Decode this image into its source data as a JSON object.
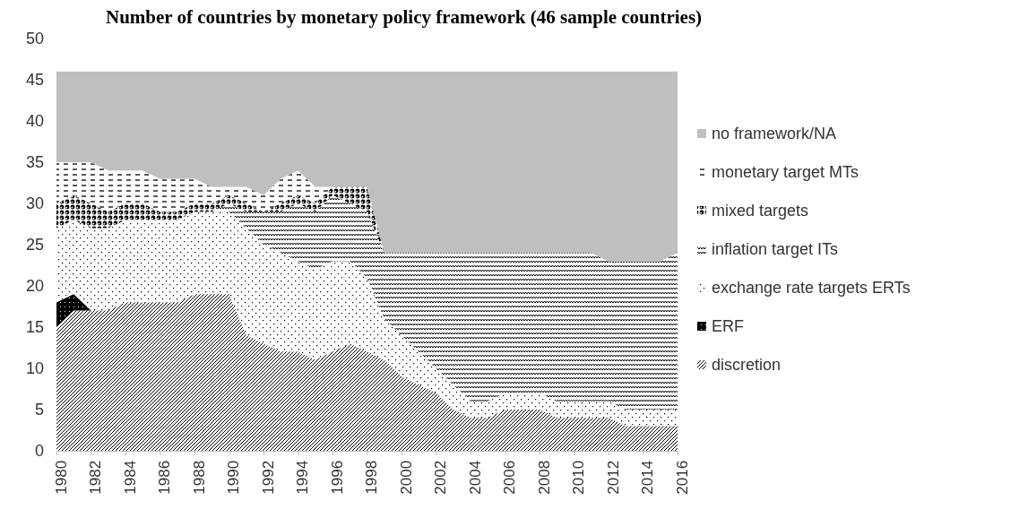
{
  "chart_data": {
    "type": "area",
    "stacked": true,
    "title": "Number of countries by monetary policy framework (46 sample countries)",
    "x": [
      1980,
      1981,
      1982,
      1983,
      1984,
      1985,
      1986,
      1987,
      1988,
      1989,
      1990,
      1991,
      1992,
      1993,
      1994,
      1995,
      1996,
      1997,
      1998,
      1999,
      2000,
      2001,
      2002,
      2003,
      2004,
      2005,
      2006,
      2007,
      2008,
      2009,
      2010,
      2011,
      2012,
      2013,
      2014,
      2015,
      2016
    ],
    "xlim": [
      1980,
      2016
    ],
    "xticks": [
      1980,
      1982,
      1984,
      1986,
      1988,
      1990,
      1992,
      1994,
      1996,
      1998,
      2000,
      2002,
      2004,
      2006,
      2008,
      2010,
      2012,
      2014,
      2016
    ],
    "ylim": [
      0,
      50
    ],
    "yticks": [
      0,
      5,
      10,
      15,
      20,
      25,
      30,
      35,
      40,
      45,
      50
    ],
    "grid": false,
    "legend": "right",
    "series": [
      {
        "name": "discretion",
        "color": "#000000",
        "values": [
          15,
          17,
          17,
          17,
          18,
          18,
          18,
          18,
          19,
          19,
          19,
          14,
          13,
          12,
          12,
          11,
          12,
          13,
          12,
          11,
          9,
          8,
          7,
          5,
          4,
          4,
          5,
          5,
          5,
          4,
          4,
          4,
          4,
          3,
          3,
          3,
          3
        ]
      },
      {
        "name": "ERF",
        "color": "#000000",
        "values": [
          3,
          2,
          0,
          0,
          0,
          0,
          0,
          0,
          0,
          0,
          0,
          0,
          0,
          0,
          0,
          0,
          0,
          0,
          0,
          0,
          0,
          0,
          0,
          0,
          0,
          0,
          0,
          0,
          0,
          0,
          0,
          0,
          0,
          0,
          0,
          0,
          0
        ]
      },
      {
        "name": "exchange rate targets ERTs",
        "color": "#000000",
        "values": [
          9,
          9,
          10,
          10,
          10,
          10,
          10,
          10,
          10,
          10,
          10,
          13,
          12,
          12,
          11,
          11,
          11,
          10,
          9,
          5,
          5,
          4,
          3,
          3,
          2,
          2,
          2,
          2,
          2,
          2,
          2,
          2,
          2,
          2,
          2,
          2,
          2
        ]
      },
      {
        "name": "inflation target ITs",
        "color": "#000000",
        "values": [
          0,
          0,
          0,
          0,
          0,
          0,
          0,
          0,
          0,
          0,
          1,
          2,
          4,
          5,
          7,
          7,
          8,
          7,
          8,
          8,
          10,
          12,
          14,
          16,
          18,
          18,
          17,
          17,
          17,
          18,
          18,
          18,
          17,
          18,
          18,
          18,
          19
        ]
      },
      {
        "name": "mixed targets",
        "color": "#000000",
        "values": [
          3,
          3,
          3,
          2,
          2,
          2,
          1,
          1,
          1,
          1,
          1,
          1,
          0,
          1,
          1,
          1,
          1,
          2,
          3,
          0,
          0,
          0,
          0,
          0,
          0,
          0,
          0,
          0,
          0,
          0,
          0,
          0,
          0,
          0,
          0,
          0,
          0
        ]
      },
      {
        "name": "monetary target MTs",
        "color": "#000000",
        "values": [
          5,
          4,
          5,
          5,
          4,
          4,
          4,
          4,
          3,
          2,
          1,
          2,
          2,
          3,
          3,
          2,
          0,
          0,
          0,
          0,
          0,
          0,
          0,
          0,
          0,
          0,
          0,
          0,
          0,
          0,
          0,
          0,
          0,
          0,
          0,
          0,
          0
        ]
      },
      {
        "name": "no framework/NA",
        "color": "#bfbfbf",
        "values": [
          11,
          11,
          11,
          12,
          12,
          12,
          13,
          13,
          13,
          14,
          14,
          14,
          15,
          13,
          12,
          14,
          14,
          14,
          14,
          22,
          22,
          22,
          22,
          22,
          22,
          22,
          22,
          22,
          22,
          22,
          22,
          22,
          23,
          23,
          23,
          23,
          22
        ]
      }
    ]
  }
}
